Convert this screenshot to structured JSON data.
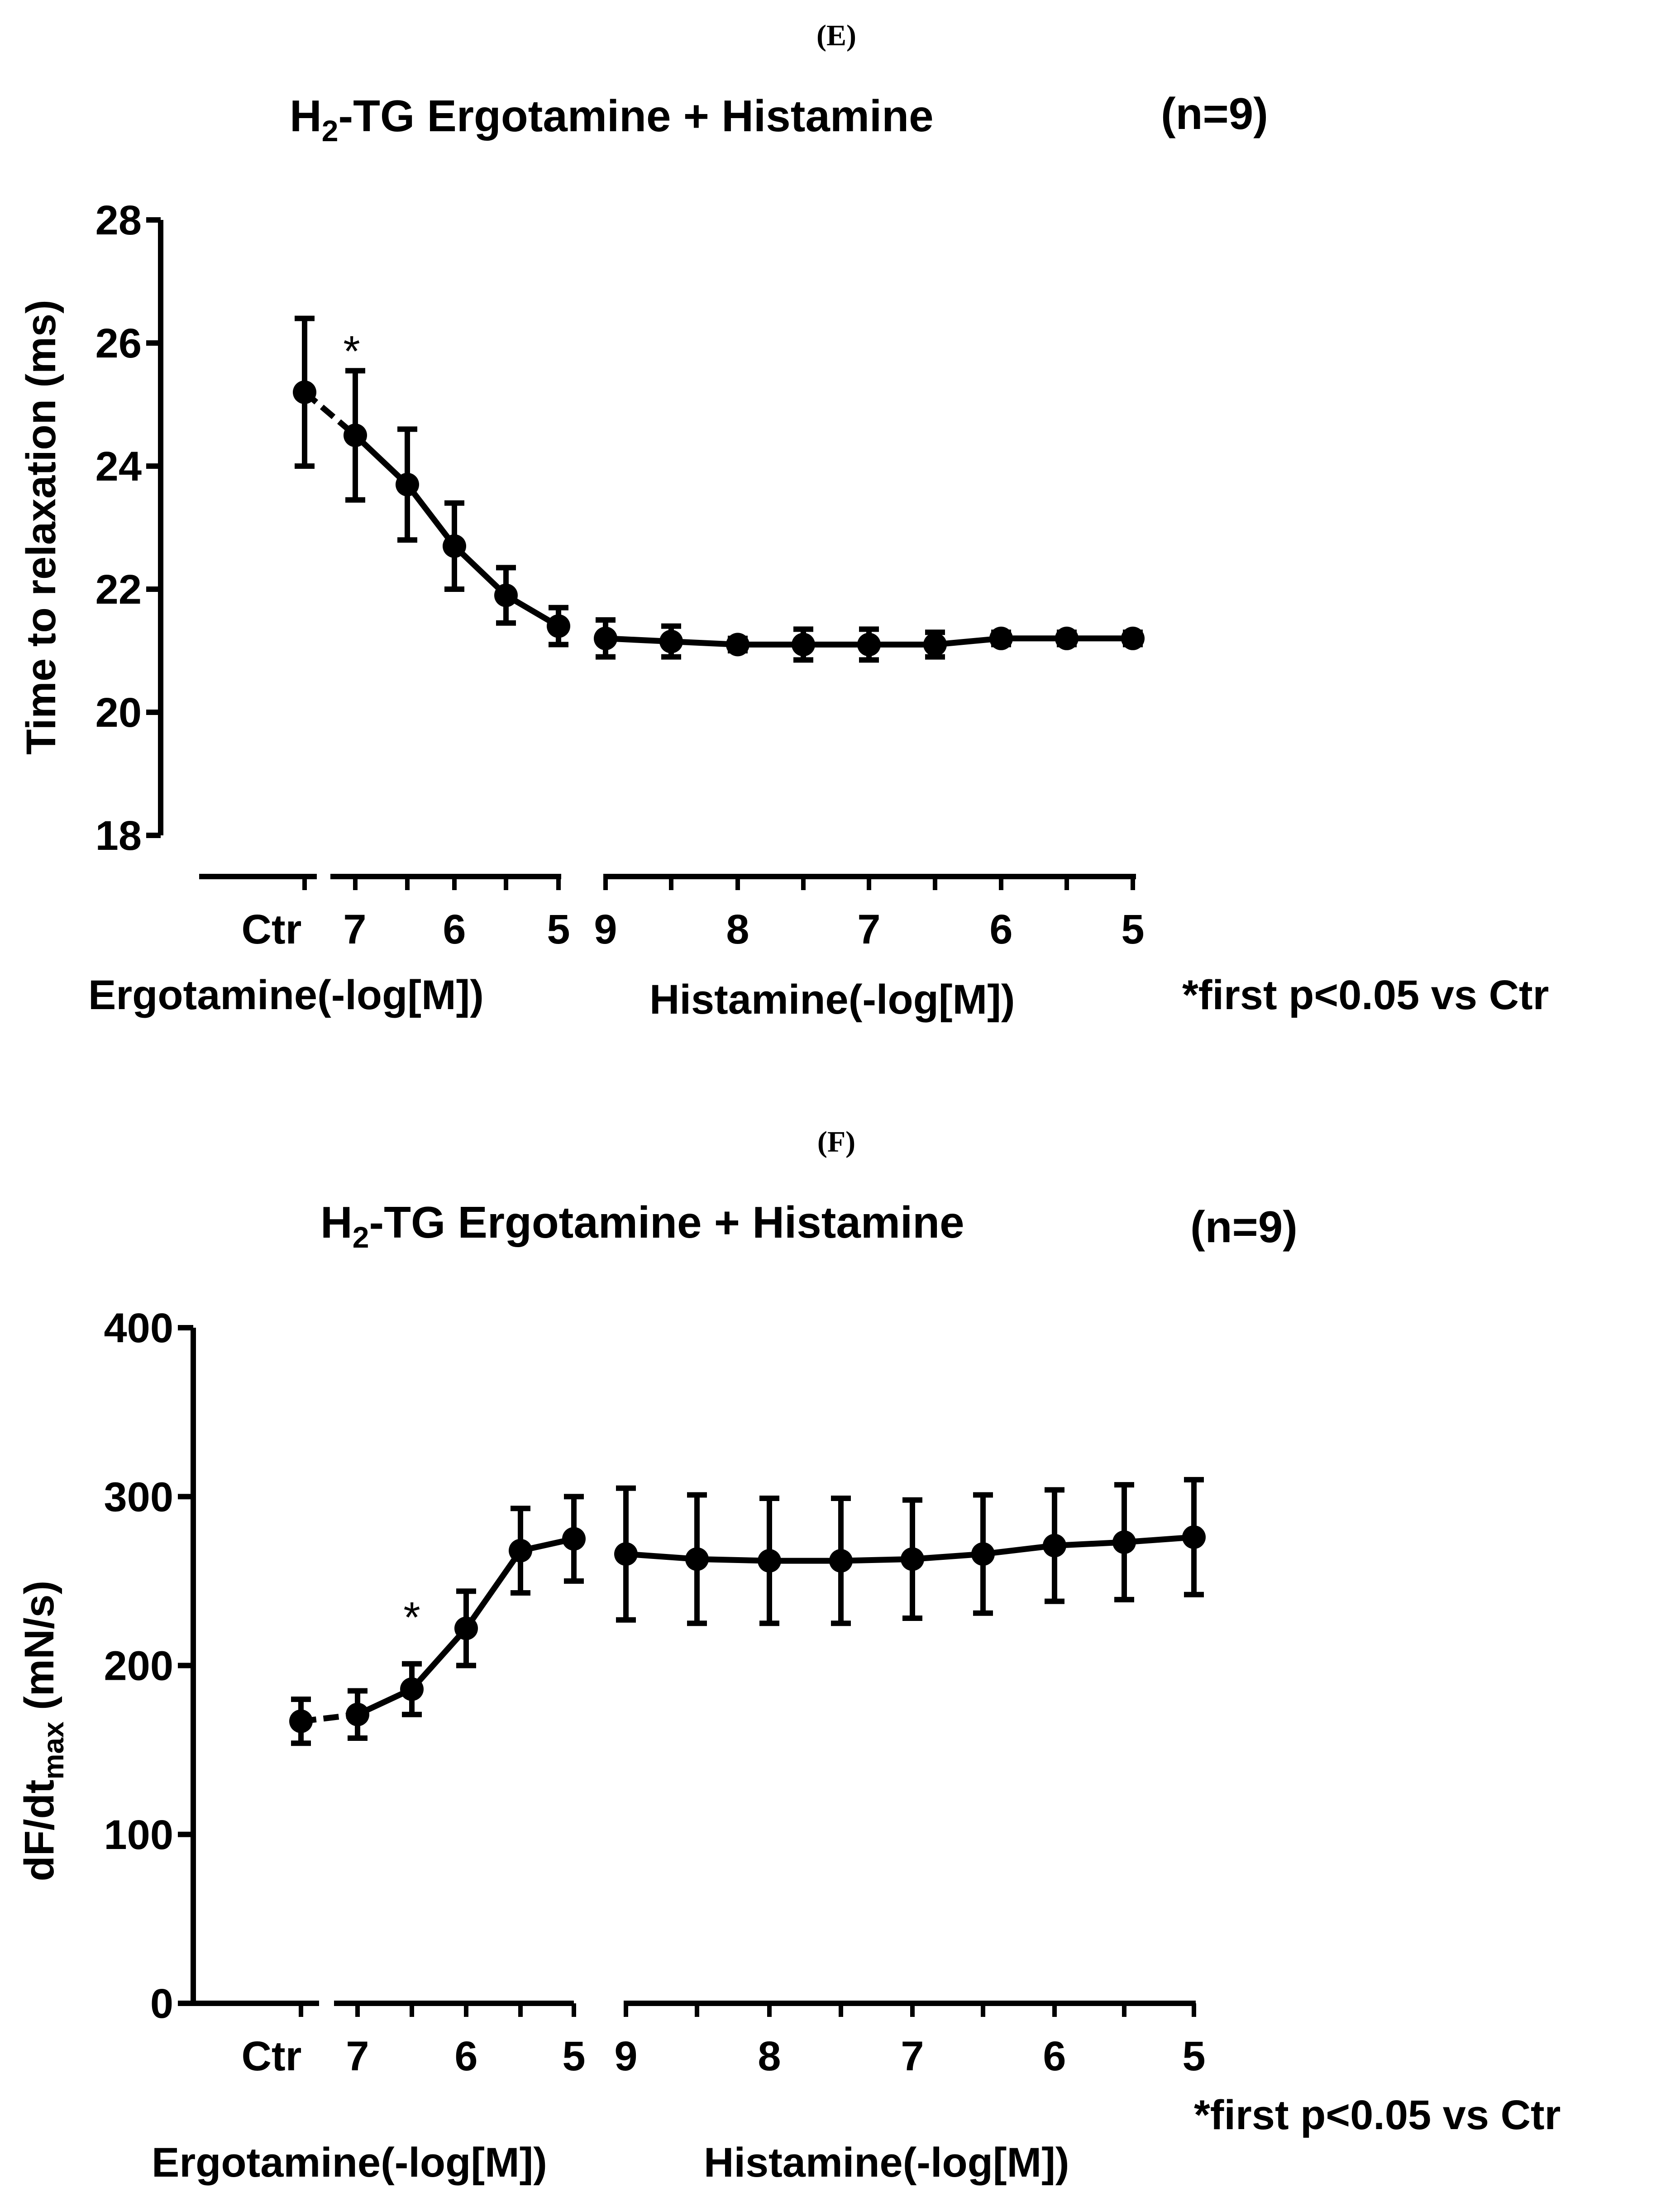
{
  "panel_e": {
    "label": "(E)",
    "title_main": "H",
    "title_sub": "2",
    "title_rest": "-TG Ergotamine + Histamine",
    "n_label": "(n=9)",
    "ylabel": "Time to relaxation (ms)",
    "x_ticks_ergot": [
      "Ctr",
      "7",
      "6",
      "5"
    ],
    "x_ticks_hist": [
      "9",
      "8",
      "7",
      "6",
      "5"
    ],
    "xlabel_ergot": "Ergotamine(-log[M])",
    "xlabel_hist": "Histamine(-log[M])",
    "footnote": "*first p<0.05 vs Ctr",
    "star": "*"
  },
  "panel_f": {
    "label": "(F)",
    "title_main": "H",
    "title_sub": "2",
    "title_rest": "-TG Ergotamine + Histamine",
    "n_label": "(n=9)",
    "ylabel_main": "dF/dt",
    "ylabel_sub": "max",
    "ylabel_units": " (mN/s)",
    "x_ticks_ergot": [
      "Ctr",
      "7",
      "6",
      "5"
    ],
    "x_ticks_hist": [
      "9",
      "8",
      "7",
      "6",
      "5"
    ],
    "xlabel_ergot": "Ergotamine(-log[M])",
    "xlabel_hist": "Histamine(-log[M])",
    "footnote": "*first p<0.05 vs Ctr",
    "star": "*"
  },
  "chart_data": [
    {
      "type": "line",
      "title": "H2-TG Ergotamine + Histamine",
      "ylabel": "Time to relaxation (ms)",
      "ylim": [
        18,
        28
      ],
      "yticks": [
        18,
        20,
        22,
        24,
        26,
        28
      ],
      "x": [
        "Ctr",
        "7",
        "6.5",
        "6",
        "5.5",
        "5",
        "9",
        "8.5",
        "8",
        "7.5",
        "7",
        "6.5",
        "6",
        "5.5",
        "5"
      ],
      "segment": [
        "ctr",
        "ergot",
        "ergot",
        "ergot",
        "ergot",
        "ergot",
        "hist",
        "hist",
        "hist",
        "hist",
        "hist",
        "hist",
        "hist",
        "hist",
        "hist"
      ],
      "series": [
        {
          "name": "mean",
          "values": [
            25.2,
            24.5,
            23.7,
            22.7,
            21.9,
            21.4,
            21.2,
            21.15,
            21.1,
            21.1,
            21.1,
            21.1,
            21.2,
            21.2,
            21.2
          ],
          "sem": [
            1.2,
            1.05,
            0.9,
            0.7,
            0.45,
            0.3,
            0.3,
            0.25,
            0.1,
            0.25,
            0.25,
            0.2,
            0.1,
            0.1,
            0.1
          ]
        }
      ],
      "significance": {
        "index": 1,
        "text": "*"
      }
    },
    {
      "type": "line",
      "title": "H2-TG Ergotamine + Histamine",
      "ylabel": "dF/dtmax (mN/s)",
      "ylim": [
        0,
        400
      ],
      "yticks": [
        0,
        100,
        200,
        300,
        400
      ],
      "x": [
        "Ctr",
        "7",
        "6.5",
        "6",
        "5.5",
        "5",
        "9",
        "8.5",
        "8",
        "7.5",
        "7",
        "6.5",
        "6",
        "5.5",
        "5"
      ],
      "segment": [
        "ctr",
        "ergot",
        "ergot",
        "ergot",
        "ergot",
        "ergot",
        "hist",
        "hist",
        "hist",
        "hist",
        "hist",
        "hist",
        "hist",
        "hist",
        "hist"
      ],
      "series": [
        {
          "name": "mean",
          "values": [
            167,
            171,
            186,
            222,
            268,
            275,
            266,
            263,
            262,
            262,
            263,
            266,
            271,
            273,
            276
          ],
          "sem": [
            13,
            14,
            15,
            22,
            25,
            25,
            39,
            38,
            37,
            37,
            35,
            35,
            33,
            34,
            34
          ]
        }
      ],
      "significance": {
        "index": 2,
        "text": "*"
      }
    }
  ]
}
